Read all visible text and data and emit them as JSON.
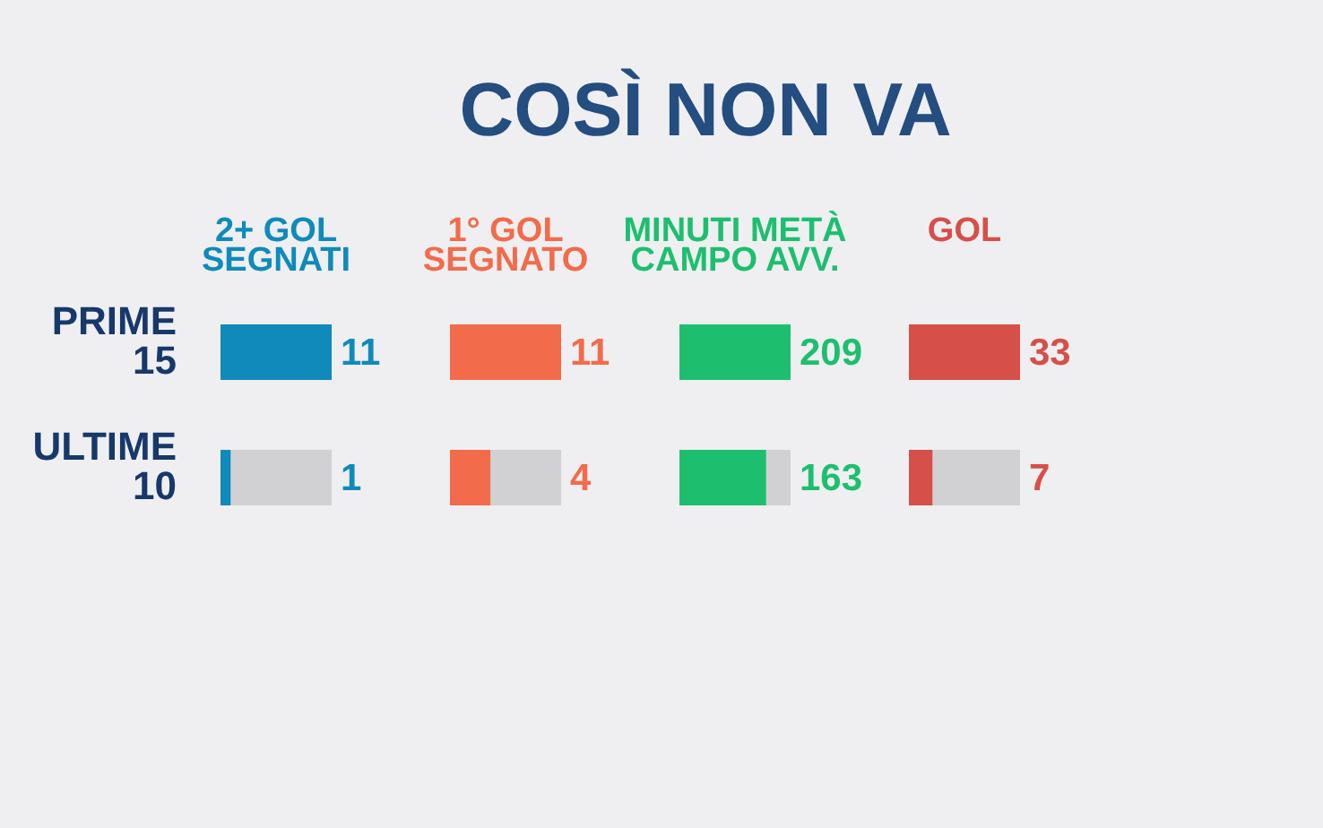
{
  "chart_data": [
    {
      "type": "other",
      "title": "COSÌ NON VA"
    },
    {
      "type": "bar",
      "orientation": "horizontal",
      "title": "2+ GOL\nSEGNATI",
      "categories": [
        "PRIME 15",
        "ULTIME 10"
      ],
      "series": [
        {
          "color": "#0f8abb",
          "values": [
            11,
            1
          ]
        }
      ],
      "data_labels": true,
      "tick_labels": "y"
    },
    {
      "type": "bar",
      "orientation": "horizontal",
      "title": "1° GOL\nSEGNATO",
      "categories": [
        null,
        null
      ],
      "series": [
        {
          "color": "#f26b4a",
          "values": [
            11,
            4
          ]
        }
      ],
      "data_labels": true,
      "tick_labels": false
    },
    {
      "type": "bar",
      "orientation": "horizontal",
      "title": "MINUTI METÀ\nCAMPO AVV.",
      "categories": [
        null,
        null
      ],
      "series": [
        {
          "color": "#1dbf6f",
          "values": [
            209,
            163
          ]
        }
      ],
      "data_labels": true,
      "tick_labels": false
    },
    {
      "type": "bar",
      "orientation": "horizontal",
      "title": "GOL",
      "categories": [
        null,
        null
      ],
      "series": [
        {
          "color": "#d64f49",
          "values": [
            33,
            7
          ]
        }
      ],
      "data_labels": true,
      "tick_labels": false
    }
  ]
}
